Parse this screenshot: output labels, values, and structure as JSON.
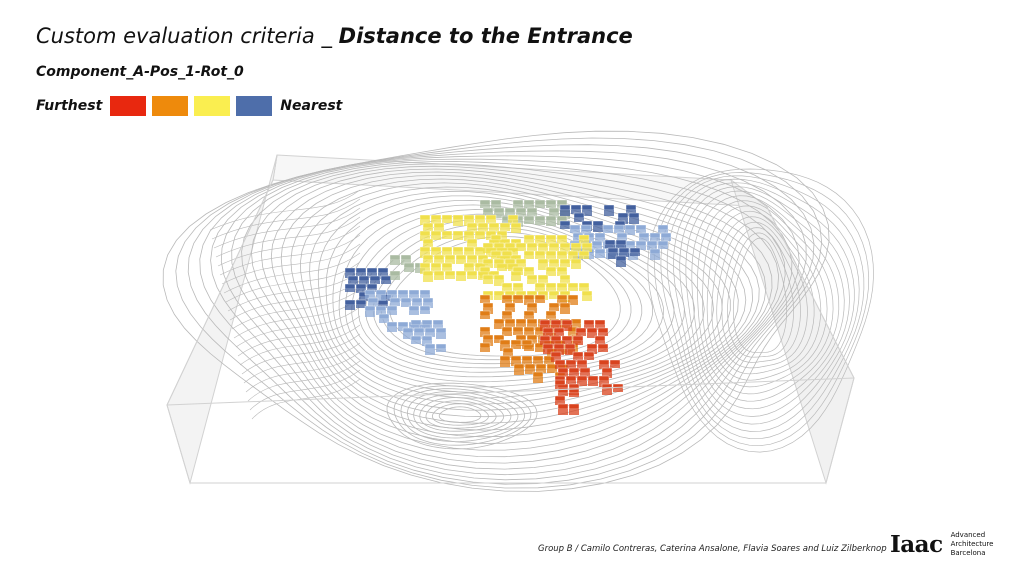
{
  "header": {
    "title_prefix": "Custom evaluation criteria _",
    "title_main": "Distance to the Entrance",
    "subtitle": "Component_A-Pos_1-Rot_0"
  },
  "legend": {
    "left_label": "Furthest",
    "right_label": "Nearest",
    "colors": [
      "#e8280f",
      "#ee8a0c",
      "#faee50",
      "#4e6eaa"
    ]
  },
  "scene_colors": {
    "red": "#d9431e",
    "orange": "#e07d17",
    "yellow": "#f0e04c",
    "light_blue": "#8eaad6",
    "dark_blue": "#43609e",
    "grey_green": "#aabba2",
    "box_edge": "#d2d2d2",
    "contour": "#b9b9b9"
  },
  "footer": {
    "credits": "Group B / Camilo Contreras, Caterina Ansalone, Flavia Soares and Luiz Zilberknop",
    "logo_mark": "Iaac",
    "logo_lines": [
      "Advanced",
      "Architecture",
      "Barcelona"
    ]
  }
}
